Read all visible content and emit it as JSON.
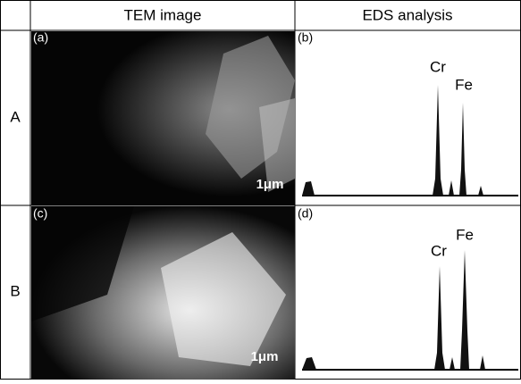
{
  "header": {
    "columns": [
      "TEM image",
      "EDS analysis"
    ]
  },
  "rows": [
    {
      "label": "A",
      "tem_panel": "(a)",
      "eds_panel": "(b)",
      "scale_bar": "1μm",
      "peaks": [
        "Cr",
        "Fe"
      ]
    },
    {
      "label": "B",
      "tem_panel": "(c)",
      "eds_panel": "(d)",
      "scale_bar": "1μm",
      "peaks": [
        "Cr",
        "Fe"
      ]
    }
  ]
}
